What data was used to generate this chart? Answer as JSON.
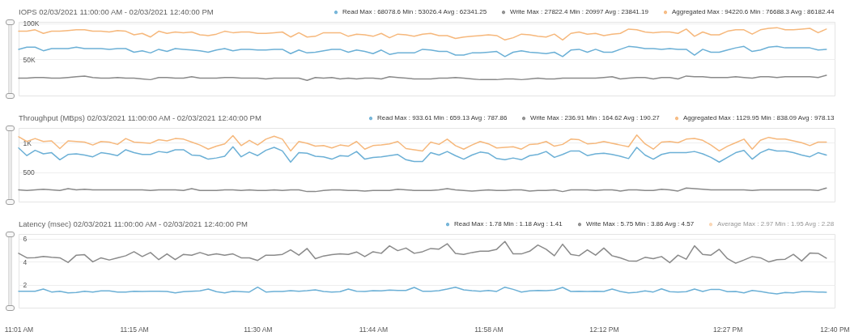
{
  "chart_data": [
    {
      "type": "line",
      "title": "IOPS 02/03/2021 11:00:00 AM - 02/03/2021 12:40:00 PM",
      "x": [
        "2021-02-03T11:01",
        "2021-02-03T11:02",
        "2021-02-03T11:03",
        "2021-02-03T11:04",
        "2021-02-03T11:05",
        "2021-02-03T11:06",
        "2021-02-03T11:07",
        "2021-02-03T11:08",
        "2021-02-03T11:09",
        "2021-02-03T11:10",
        "2021-02-03T11:11",
        "2021-02-03T11:12",
        "2021-02-03T11:13",
        "2021-02-03T11:14",
        "2021-02-03T11:15",
        "2021-02-03T11:16",
        "2021-02-03T11:17",
        "2021-02-03T11:18",
        "2021-02-03T11:19",
        "2021-02-03T11:20",
        "2021-02-03T11:21",
        "2021-02-03T11:22",
        "2021-02-03T11:23",
        "2021-02-03T11:24",
        "2021-02-03T11:25",
        "2021-02-03T11:26",
        "2021-02-03T11:27",
        "2021-02-03T11:28",
        "2021-02-03T11:29",
        "2021-02-03T11:30",
        "2021-02-03T11:31",
        "2021-02-03T11:32",
        "2021-02-03T11:33",
        "2021-02-03T11:34",
        "2021-02-03T11:35",
        "2021-02-03T11:36",
        "2021-02-03T11:37",
        "2021-02-03T11:38",
        "2021-02-03T11:39",
        "2021-02-03T11:40",
        "2021-02-03T11:41",
        "2021-02-03T11:42",
        "2021-02-03T11:43",
        "2021-02-03T11:44",
        "2021-02-03T11:45",
        "2021-02-03T11:46",
        "2021-02-03T11:47",
        "2021-02-03T11:48",
        "2021-02-03T11:49",
        "2021-02-03T11:50",
        "2021-02-03T11:51",
        "2021-02-03T11:52",
        "2021-02-03T11:53",
        "2021-02-03T11:54",
        "2021-02-03T11:55",
        "2021-02-03T11:56",
        "2021-02-03T11:57",
        "2021-02-03T11:58",
        "2021-02-03T11:59",
        "2021-02-03T12:00",
        "2021-02-03T12:01",
        "2021-02-03T12:02",
        "2021-02-03T12:03",
        "2021-02-03T12:04",
        "2021-02-03T12:05",
        "2021-02-03T12:06",
        "2021-02-03T12:07",
        "2021-02-03T12:08",
        "2021-02-03T12:09",
        "2021-02-03T12:10",
        "2021-02-03T12:11",
        "2021-02-03T12:12",
        "2021-02-03T12:13",
        "2021-02-03T12:14",
        "2021-02-03T12:15",
        "2021-02-03T12:16",
        "2021-02-03T12:17",
        "2021-02-03T12:18",
        "2021-02-03T12:19",
        "2021-02-03T12:20",
        "2021-02-03T12:21",
        "2021-02-03T12:22",
        "2021-02-03T12:23",
        "2021-02-03T12:24",
        "2021-02-03T12:25",
        "2021-02-03T12:26",
        "2021-02-03T12:27",
        "2021-02-03T12:28",
        "2021-02-03T12:29",
        "2021-02-03T12:30",
        "2021-02-03T12:31",
        "2021-02-03T12:32",
        "2021-02-03T12:33",
        "2021-02-03T12:34",
        "2021-02-03T12:35",
        "2021-02-03T12:36",
        "2021-02-03T12:37",
        "2021-02-03T12:38",
        "2021-02-03T12:39"
      ],
      "xlim": [
        "2021-02-03T11:01",
        "2021-02-03T12:40"
      ],
      "ylim": [
        0,
        102000
      ],
      "yticks": [
        {
          "value": 50000,
          "label": "50K"
        },
        {
          "value": 100000,
          "label": "100K"
        }
      ],
      "tick_labels": "y",
      "grid": "y",
      "legend": "top right",
      "series": [
        {
          "name": "Read Max : 68078.6 Min : 53026.4 Avg : 62341.25",
          "color": "#6cb0d6",
          "values": [
            64000,
            67000,
            67000,
            62000,
            65000,
            65000,
            65000,
            67000,
            65000,
            65000,
            65000,
            64000,
            65000,
            65000,
            60000,
            62000,
            59000,
            64000,
            61000,
            65000,
            64000,
            63000,
            62000,
            60000,
            63000,
            65000,
            62000,
            64000,
            64000,
            63000,
            63000,
            64000,
            64000,
            58000,
            63000,
            59000,
            60000,
            62000,
            64000,
            64000,
            60000,
            63000,
            61000,
            58000,
            63000,
            57000,
            59000,
            59000,
            59000,
            64000,
            63000,
            61000,
            61000,
            56000,
            56000,
            59000,
            59000,
            60000,
            61000,
            54000,
            60000,
            62000,
            60000,
            59000,
            58000,
            60000,
            54000,
            63000,
            64000,
            60000,
            64000,
            60000,
            60000,
            64000,
            68000,
            67000,
            65000,
            65000,
            64000,
            65000,
            64000,
            64000,
            56000,
            64000,
            60000,
            60000,
            63000,
            66000,
            68000,
            61000,
            63000,
            67000,
            68000,
            66000,
            66000,
            66000,
            66000,
            63000,
            64000
          ]
        },
        {
          "name": "Write Max : 27822.4 Min : 20997 Avg : 23841.19",
          "color": "#8a8a8a",
          "values": [
            24000,
            24000,
            25000,
            25000,
            24000,
            24000,
            25000,
            26000,
            27000,
            25000,
            24000,
            24000,
            25000,
            24000,
            24000,
            23000,
            22000,
            25000,
            25000,
            24000,
            24000,
            26000,
            24000,
            24000,
            24000,
            25000,
            25000,
            24000,
            24000,
            24000,
            23000,
            24000,
            24000,
            24000,
            24000,
            21000,
            25000,
            24000,
            25000,
            23000,
            24000,
            23000,
            24000,
            24000,
            23000,
            26000,
            25000,
            24000,
            23000,
            23000,
            23000,
            24000,
            24000,
            25000,
            24000,
            23000,
            22000,
            22000,
            22000,
            23000,
            23000,
            22000,
            23000,
            24000,
            23000,
            23000,
            24000,
            24000,
            24000,
            24000,
            24000,
            25000,
            26000,
            23000,
            24000,
            25000,
            25000,
            23000,
            25000,
            25000,
            23000,
            27000,
            26000,
            26000,
            25000,
            25000,
            25000,
            26000,
            25000,
            24000,
            26000,
            26000,
            25000,
            26000,
            26000,
            26000,
            26000,
            25000,
            28000
          ]
        },
        {
          "name": "Aggregated Max : 94220.6 Min : 76688.3 Avg : 86182.44",
          "color": "#f6b87c",
          "values": [
            89000,
            89000,
            91000,
            86000,
            89000,
            89000,
            90000,
            91000,
            91000,
            89000,
            89000,
            88000,
            90000,
            89000,
            84000,
            86000,
            81000,
            89000,
            86000,
            88000,
            87000,
            88000,
            84000,
            83000,
            85000,
            89000,
            87000,
            88000,
            88000,
            86000,
            86000,
            87000,
            88000,
            81000,
            87000,
            81000,
            82000,
            87000,
            87000,
            87000,
            82000,
            85000,
            84000,
            82000,
            86000,
            80000,
            85000,
            84000,
            82000,
            85000,
            86000,
            83000,
            83000,
            79000,
            81000,
            82000,
            83000,
            84000,
            83000,
            77000,
            80000,
            85000,
            84000,
            82000,
            81000,
            85000,
            77000,
            86000,
            88000,
            85000,
            86000,
            83000,
            85000,
            86000,
            92000,
            91000,
            88000,
            87000,
            88000,
            88000,
            86000,
            92000,
            82000,
            88000,
            84000,
            84000,
            89000,
            91000,
            91000,
            85000,
            91000,
            93000,
            94000,
            91000,
            91000,
            92000,
            93000,
            87000,
            92000
          ]
        }
      ]
    },
    {
      "type": "line",
      "title": "Throughput (MBps) 02/03/2021 11:00:00 AM - 02/03/2021 12:40:00 PM",
      "x": [
        "2021-02-03T11:01",
        "2021-02-03T11:02",
        "2021-02-03T11:03",
        "2021-02-03T11:04",
        "2021-02-03T11:05",
        "2021-02-03T11:06",
        "2021-02-03T11:07",
        "2021-02-03T11:08",
        "2021-02-03T11:09",
        "2021-02-03T11:10",
        "2021-02-03T11:11",
        "2021-02-03T11:12",
        "2021-02-03T11:13",
        "2021-02-03T11:14",
        "2021-02-03T11:15",
        "2021-02-03T11:16",
        "2021-02-03T11:17",
        "2021-02-03T11:18",
        "2021-02-03T11:19",
        "2021-02-03T11:20",
        "2021-02-03T11:21",
        "2021-02-03T11:22",
        "2021-02-03T11:23",
        "2021-02-03T11:24",
        "2021-02-03T11:25",
        "2021-02-03T11:26",
        "2021-02-03T11:27",
        "2021-02-03T11:28",
        "2021-02-03T11:29",
        "2021-02-03T11:30",
        "2021-02-03T11:31",
        "2021-02-03T11:32",
        "2021-02-03T11:33",
        "2021-02-03T11:34",
        "2021-02-03T11:35",
        "2021-02-03T11:36",
        "2021-02-03T11:37",
        "2021-02-03T11:38",
        "2021-02-03T11:39",
        "2021-02-03T11:40",
        "2021-02-03T11:41",
        "2021-02-03T11:42",
        "2021-02-03T11:43",
        "2021-02-03T11:44",
        "2021-02-03T11:45",
        "2021-02-03T11:46",
        "2021-02-03T11:47",
        "2021-02-03T11:48",
        "2021-02-03T11:49",
        "2021-02-03T11:50",
        "2021-02-03T11:51",
        "2021-02-03T11:52",
        "2021-02-03T11:53",
        "2021-02-03T11:54",
        "2021-02-03T11:55",
        "2021-02-03T11:56",
        "2021-02-03T11:57",
        "2021-02-03T11:58",
        "2021-02-03T11:59",
        "2021-02-03T12:00",
        "2021-02-03T12:01",
        "2021-02-03T12:02",
        "2021-02-03T12:03",
        "2021-02-03T12:04",
        "2021-02-03T12:05",
        "2021-02-03T12:06",
        "2021-02-03T12:07",
        "2021-02-03T12:08",
        "2021-02-03T12:09",
        "2021-02-03T12:10",
        "2021-02-03T12:11",
        "2021-02-03T12:12",
        "2021-02-03T12:13",
        "2021-02-03T12:14",
        "2021-02-03T12:15",
        "2021-02-03T12:16",
        "2021-02-03T12:17",
        "2021-02-03T12:18",
        "2021-02-03T12:19",
        "2021-02-03T12:20",
        "2021-02-03T12:21",
        "2021-02-03T12:22",
        "2021-02-03T12:23",
        "2021-02-03T12:24",
        "2021-02-03T12:25",
        "2021-02-03T12:26",
        "2021-02-03T12:27",
        "2021-02-03T12:28",
        "2021-02-03T12:29",
        "2021-02-03T12:30",
        "2021-02-03T12:31",
        "2021-02-03T12:32",
        "2021-02-03T12:33",
        "2021-02-03T12:34",
        "2021-02-03T12:35",
        "2021-02-03T12:36",
        "2021-02-03T12:37",
        "2021-02-03T12:38",
        "2021-02-03T12:39"
      ],
      "xlim": [
        "2021-02-03T11:01",
        "2021-02-03T12:40"
      ],
      "ylim": [
        0,
        1250
      ],
      "yticks": [
        500,
        {
          "value": 1000,
          "label": "1K"
        }
      ],
      "tick_labels": "y",
      "grid": "y",
      "legend": "top right",
      "series": [
        {
          "name": "Read Max : 933.61 Min : 659.13 Avg : 787.86",
          "color": "#6cb0d6",
          "values": [
            910,
            780,
            870,
            810,
            830,
            710,
            800,
            810,
            790,
            760,
            830,
            810,
            780,
            880,
            830,
            800,
            800,
            850,
            830,
            880,
            880,
            790,
            780,
            720,
            740,
            770,
            930,
            760,
            840,
            780,
            870,
            920,
            860,
            670,
            830,
            820,
            770,
            760,
            720,
            780,
            770,
            850,
            720,
            750,
            760,
            780,
            800,
            710,
            680,
            680,
            830,
            790,
            850,
            780,
            720,
            790,
            840,
            820,
            730,
            710,
            740,
            710,
            780,
            800,
            850,
            750,
            800,
            860,
            860,
            780,
            810,
            820,
            800,
            770,
            730,
            920,
            790,
            720,
            800,
            830,
            830,
            830,
            850,
            810,
            750,
            670,
            750,
            830,
            870,
            720,
            830,
            890,
            860,
            860,
            830,
            790,
            760,
            830,
            790
          ]
        },
        {
          "name": "Write Max : 236.91 Min : 164.62 Avg : 190.27",
          "color": "#8a8a8a",
          "values": [
            200,
            190,
            200,
            210,
            200,
            190,
            220,
            200,
            210,
            200,
            200,
            200,
            200,
            200,
            200,
            200,
            190,
            200,
            200,
            200,
            190,
            220,
            190,
            190,
            190,
            200,
            200,
            190,
            200,
            190,
            190,
            200,
            190,
            200,
            200,
            170,
            170,
            190,
            200,
            200,
            190,
            190,
            180,
            190,
            190,
            190,
            210,
            200,
            190,
            190,
            190,
            200,
            220,
            200,
            190,
            180,
            190,
            200,
            190,
            190,
            200,
            200,
            180,
            190,
            190,
            200,
            170,
            200,
            200,
            200,
            190,
            200,
            200,
            180,
            200,
            200,
            190,
            190,
            210,
            200,
            180,
            230,
            220,
            210,
            200,
            200,
            200,
            200,
            200,
            190,
            200,
            200,
            200,
            200,
            200,
            200,
            200,
            190,
            230
          ]
        },
        {
          "name": "Aggregated Max : 1129.95 Min : 838.09 Avg : 978.13",
          "color": "#f6b87c",
          "values": [
            1100,
            1020,
            1070,
            1020,
            1030,
            900,
            1030,
            1020,
            1010,
            960,
            1020,
            1010,
            970,
            1070,
            1010,
            1000,
            990,
            1050,
            1030,
            1070,
            1060,
            1010,
            960,
            890,
            940,
            980,
            1120,
            950,
            1040,
            960,
            1060,
            1110,
            1060,
            860,
            1020,
            990,
            940,
            950,
            910,
            960,
            940,
            1020,
            890,
            950,
            960,
            980,
            1020,
            900,
            880,
            860,
            1010,
            970,
            1060,
            950,
            890,
            960,
            1020,
            980,
            910,
            920,
            930,
            890,
            970,
            980,
            1020,
            940,
            970,
            1060,
            1050,
            980,
            990,
            1020,
            990,
            960,
            930,
            1130,
            980,
            890,
            1010,
            1020,
            1000,
            1060,
            1070,
            1040,
            960,
            860,
            940,
            1000,
            1060,
            890,
            1040,
            1090,
            1060,
            1060,
            1030,
            1000,
            950,
            1010,
            1010
          ]
        }
      ]
    },
    {
      "type": "line",
      "title": "Latency (msec) 02/03/2021 11:00:00 AM - 02/03/2021 12:40:00 PM",
      "x": [
        "2021-02-03T11:01",
        "2021-02-03T11:02",
        "2021-02-03T11:03",
        "2021-02-03T11:04",
        "2021-02-03T11:05",
        "2021-02-03T11:06",
        "2021-02-03T11:07",
        "2021-02-03T11:08",
        "2021-02-03T11:09",
        "2021-02-03T11:10",
        "2021-02-03T11:11",
        "2021-02-03T11:12",
        "2021-02-03T11:13",
        "2021-02-03T11:14",
        "2021-02-03T11:15",
        "2021-02-03T11:16",
        "2021-02-03T11:17",
        "2021-02-03T11:18",
        "2021-02-03T11:19",
        "2021-02-03T11:20",
        "2021-02-03T11:21",
        "2021-02-03T11:22",
        "2021-02-03T11:23",
        "2021-02-03T11:24",
        "2021-02-03T11:25",
        "2021-02-03T11:26",
        "2021-02-03T11:27",
        "2021-02-03T11:28",
        "2021-02-03T11:29",
        "2021-02-03T11:30",
        "2021-02-03T11:31",
        "2021-02-03T11:32",
        "2021-02-03T11:33",
        "2021-02-03T11:34",
        "2021-02-03T11:35",
        "2021-02-03T11:36",
        "2021-02-03T11:37",
        "2021-02-03T11:38",
        "2021-02-03T11:39",
        "2021-02-03T11:40",
        "2021-02-03T11:41",
        "2021-02-03T11:42",
        "2021-02-03T11:43",
        "2021-02-03T11:44",
        "2021-02-03T11:45",
        "2021-02-03T11:46",
        "2021-02-03T11:47",
        "2021-02-03T11:48",
        "2021-02-03T11:49",
        "2021-02-03T11:50",
        "2021-02-03T11:51",
        "2021-02-03T11:52",
        "2021-02-03T11:53",
        "2021-02-03T11:54",
        "2021-02-03T11:55",
        "2021-02-03T11:56",
        "2021-02-03T11:57",
        "2021-02-03T11:58",
        "2021-02-03T11:59",
        "2021-02-03T12:00",
        "2021-02-03T12:01",
        "2021-02-03T12:02",
        "2021-02-03T12:03",
        "2021-02-03T12:04",
        "2021-02-03T12:05",
        "2021-02-03T12:06",
        "2021-02-03T12:07",
        "2021-02-03T12:08",
        "2021-02-03T12:09",
        "2021-02-03T12:10",
        "2021-02-03T12:11",
        "2021-02-03T12:12",
        "2021-02-03T12:13",
        "2021-02-03T12:14",
        "2021-02-03T12:15",
        "2021-02-03T12:16",
        "2021-02-03T12:17",
        "2021-02-03T12:18",
        "2021-02-03T12:19",
        "2021-02-03T12:20",
        "2021-02-03T12:21",
        "2021-02-03T12:22",
        "2021-02-03T12:23",
        "2021-02-03T12:24",
        "2021-02-03T12:25",
        "2021-02-03T12:26",
        "2021-02-03T12:27",
        "2021-02-03T12:28",
        "2021-02-03T12:29",
        "2021-02-03T12:30",
        "2021-02-03T12:31",
        "2021-02-03T12:32",
        "2021-02-03T12:33",
        "2021-02-03T12:34",
        "2021-02-03T12:35",
        "2021-02-03T12:36",
        "2021-02-03T12:37",
        "2021-02-03T12:38",
        "2021-02-03T12:39"
      ],
      "xlim": [
        "2021-02-03T11:01",
        "2021-02-03T12:40"
      ],
      "xticks": [
        {
          "value": "2021-02-03T11:01",
          "label": "11:01 AM"
        },
        {
          "value": "2021-02-03T11:15",
          "label": "11:15 AM"
        },
        {
          "value": "2021-02-03T11:30",
          "label": "11:30 AM"
        },
        {
          "value": "2021-02-03T11:44",
          "label": "11:44 AM"
        },
        {
          "value": "2021-02-03T11:58",
          "label": "11:58 AM"
        },
        {
          "value": "2021-02-03T12:12",
          "label": "12:12 PM"
        },
        {
          "value": "2021-02-03T12:27",
          "label": "12:27 PM"
        },
        {
          "value": "2021-02-03T12:40",
          "label": "12:40 PM"
        }
      ],
      "ylim": [
        0,
        6.4
      ],
      "yticks": [
        2,
        4,
        6
      ],
      "grid": "y",
      "legend": "top right",
      "series": [
        {
          "name": "Read Max : 1.78 Min : 1.18 Avg : 1.41",
          "color": "#6cb0d6",
          "values": [
            1.43,
            1.43,
            1.43,
            1.62,
            1.36,
            1.43,
            1.29,
            1.32,
            1.43,
            1.36,
            1.46,
            1.46,
            1.36,
            1.36,
            1.43,
            1.41,
            1.43,
            1.43,
            1.41,
            1.29,
            1.39,
            1.43,
            1.46,
            1.62,
            1.39,
            1.29,
            1.43,
            1.39,
            1.36,
            1.78,
            1.36,
            1.41,
            1.41,
            1.48,
            1.43,
            1.48,
            1.55,
            1.41,
            1.36,
            1.39,
            1.62,
            1.43,
            1.41,
            1.48,
            1.46,
            1.53,
            1.5,
            1.5,
            1.76,
            1.43,
            1.43,
            1.48,
            1.62,
            1.78,
            1.55,
            1.48,
            1.43,
            1.5,
            1.41,
            1.78,
            1.59,
            1.36,
            1.46,
            1.5,
            1.48,
            1.53,
            1.76,
            1.41,
            1.43,
            1.41,
            1.43,
            1.41,
            1.62,
            1.41,
            1.29,
            1.34,
            1.46,
            1.36,
            1.64,
            1.39,
            1.36,
            1.39,
            1.62,
            1.41,
            1.59,
            1.59,
            1.39,
            1.41,
            1.29,
            1.5,
            1.41,
            1.29,
            1.2,
            1.32,
            1.29,
            1.39,
            1.39,
            1.36,
            1.34
          ]
        },
        {
          "name": "Write Max : 5.75 Min : 3.86 Avg : 4.57",
          "color": "#8a8a8a",
          "values": [
            4.72,
            4.33,
            4.35,
            4.44,
            4.37,
            4.33,
            3.93,
            4.56,
            4.6,
            3.98,
            4.33,
            4.14,
            4.33,
            4.51,
            4.86,
            4.44,
            4.79,
            4.17,
            4.67,
            4.17,
            4.63,
            4.56,
            4.79,
            4.56,
            4.67,
            4.56,
            4.67,
            4.33,
            4.33,
            4.1,
            4.56,
            4.56,
            4.63,
            5.02,
            4.56,
            5.14,
            4.26,
            4.49,
            4.6,
            4.67,
            4.63,
            4.84,
            4.44,
            4.86,
            4.72,
            5.37,
            4.95,
            5.18,
            4.72,
            4.86,
            5.14,
            5.09,
            5.55,
            4.72,
            4.63,
            4.79,
            4.9,
            4.9,
            5.07,
            5.75,
            4.67,
            4.67,
            4.9,
            5.44,
            5.07,
            4.51,
            5.51,
            4.63,
            4.51,
            5.02,
            4.56,
            5.18,
            4.51,
            4.33,
            4.07,
            4.05,
            4.37,
            4.26,
            4.44,
            3.91,
            4.56,
            4.21,
            5.37,
            4.63,
            4.56,
            5.07,
            4.26,
            3.86,
            4.14,
            4.44,
            4.33,
            3.98,
            4.17,
            4.21,
            4.63,
            4.05,
            4.74,
            4.72,
            4.3
          ]
        },
        {
          "name": "Average Max : 2.97 Min : 1.95 Avg : 2.28",
          "color": "#f6b87c",
          "values": [
            null,
            null,
            null,
            null,
            null,
            null,
            null,
            null,
            null,
            null,
            null,
            null,
            null,
            null,
            null,
            null,
            null,
            null,
            null,
            null,
            null,
            null,
            null,
            null,
            null,
            null,
            null,
            null,
            null,
            null,
            null,
            null,
            null,
            null,
            null,
            null,
            null,
            null,
            null,
            null,
            null,
            null,
            null,
            null,
            null,
            null,
            null,
            null,
            null,
            null,
            null,
            null,
            null,
            null,
            null,
            null,
            null,
            null,
            null,
            null,
            null,
            null,
            null,
            null,
            null,
            null,
            null,
            null,
            null,
            null,
            null,
            null,
            null,
            null,
            null,
            null,
            null,
            null,
            null,
            null,
            null,
            null,
            null,
            null,
            null,
            null,
            null,
            null,
            null,
            null,
            null,
            null,
            null,
            null,
            null,
            null,
            null,
            null,
            null
          ]
        }
      ]
    }
  ]
}
